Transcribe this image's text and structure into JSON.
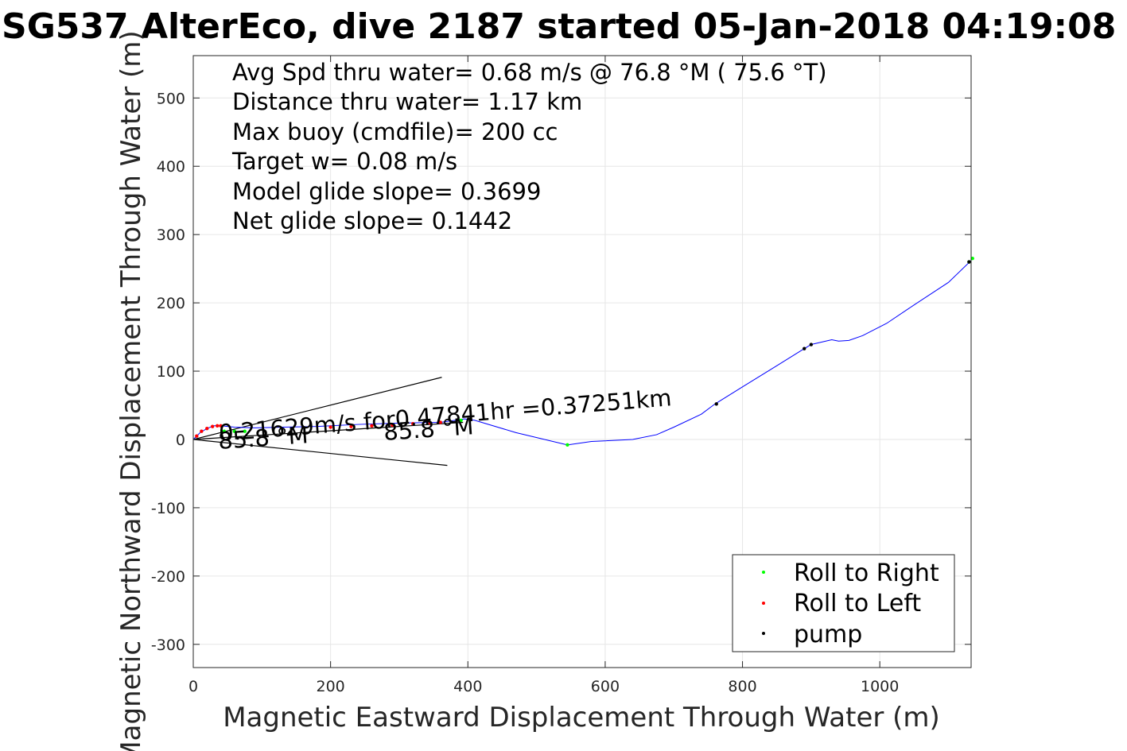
{
  "chart_data": {
    "type": "line",
    "title": "SG537 AlterEco, dive 2187 started 05-Jan-2018 04:19:08",
    "xlabel": "Magnetic Eastward Displacement Through Water (m)",
    "ylabel": "Magnetic Northward Displacement Through Water (m)",
    "xlim": [
      0,
      1133
    ],
    "ylim": [
      -334,
      562
    ],
    "xticks": [
      0,
      200,
      400,
      600,
      800,
      1000
    ],
    "yticks": [
      -300,
      -200,
      -100,
      0,
      100,
      200,
      300,
      400,
      500
    ],
    "grid": true,
    "legend_position": "bottom-right",
    "annotations": [
      "Avg Spd thru water=  0.68 m/s @  76.8 °M ( 75.6 °T)",
      "Distance thru water=  1.17 km",
      "Max buoy (cmdfile)= 200 cc",
      "Target w= 0.08 m/s",
      "Model glide slope= 0.3699",
      "Net glide slope= 0.1442"
    ],
    "current_label": "0.21629m/s for0.47841hr =0.37251km",
    "heading_labels": [
      {
        "text": "85.8 °M",
        "x": 38,
        "y": 0
      },
      {
        "text": "85.8 °M",
        "x": 278,
        "y": 12
      }
    ],
    "wedge_lines": [
      {
        "x": [
          0,
          362
        ],
        "y": [
          0,
          91
        ]
      },
      {
        "x": [
          0,
          370
        ],
        "y": [
          0,
          -38
        ]
      },
      {
        "x": [
          0,
          393
        ],
        "y": [
          0,
          25
        ]
      }
    ],
    "series": [
      {
        "name": "track",
        "color": "#0000ff",
        "x": [
          0,
          10,
          20,
          30,
          40,
          60,
          90,
          130,
          180,
          240,
          300,
          360,
          395,
          410,
          470,
          545,
          580,
          640,
          675,
          700,
          740,
          760,
          800,
          850,
          890,
          900,
          930,
          940,
          955,
          975,
          1010,
          1050,
          1100,
          1133
        ],
        "y": [
          0,
          10,
          16,
          20,
          20,
          18,
          17,
          18,
          19,
          22,
          24,
          25,
          30,
          28,
          10,
          -8,
          -3,
          0,
          7,
          18,
          37,
          52,
          77,
          108,
          133,
          139,
          146,
          144,
          145,
          152,
          170,
          197,
          230,
          262
        ]
      },
      {
        "name": "Roll to Right",
        "marker": "dot",
        "color": "#00ff00",
        "x": [
          45,
          60,
          75,
          390,
          545,
          1130,
          1135
        ],
        "y": [
          12,
          12,
          12,
          28,
          -8,
          260,
          265
        ]
      },
      {
        "name": "Roll to Left",
        "marker": "dot",
        "color": "#ff0000",
        "x": [
          5,
          12,
          20,
          28,
          35,
          40,
          200,
          230,
          260,
          290,
          320,
          345,
          360
        ],
        "y": [
          5,
          12,
          16,
          19,
          20,
          20,
          18,
          19,
          20,
          21,
          23,
          24,
          25
        ]
      },
      {
        "name": "pump",
        "marker": "dot",
        "color": "#000000",
        "x": [
          762,
          890,
          900,
          1130
        ],
        "y": [
          52,
          133,
          139,
          260
        ]
      }
    ],
    "legend": [
      "Roll to Right",
      "Roll to Left",
      "pump"
    ]
  }
}
